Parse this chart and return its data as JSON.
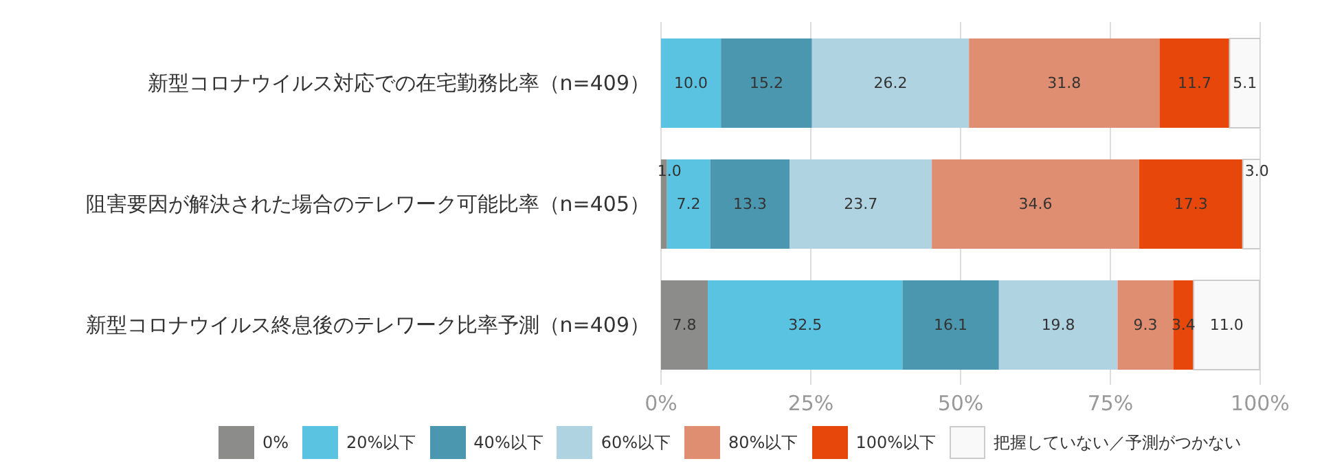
{
  "chart_data": {
    "type": "bar",
    "orientation": "horizontal",
    "stacked": true,
    "categories": [
      "新型コロナウイルス対応での在宅勤務比率（n=409）",
      "阻害要因が解決された場合のテレワーク可能比率（n=405）",
      "新型コロナウイルス終息後のテレワーク比率予測（n=409）"
    ],
    "series": [
      {
        "name": "0%",
        "color": "#8c8c8a",
        "values": [
          null,
          1.0,
          7.8
        ],
        "value_labels": [
          null,
          "1.0",
          "7.8"
        ]
      },
      {
        "name": "20%以下",
        "color": "#5bc3e2",
        "values": [
          10.0,
          7.2,
          32.5
        ],
        "value_labels": [
          "10.0",
          "7.2",
          "32.5"
        ]
      },
      {
        "name": "40%以下",
        "color": "#4b97b0",
        "values": [
          15.2,
          13.3,
          16.1
        ],
        "value_labels": [
          "15.2",
          "13.3",
          "16.1"
        ]
      },
      {
        "name": "60%以下",
        "color": "#afd3e0",
        "values": [
          26.2,
          23.7,
          19.8
        ],
        "value_labels": [
          "26.2",
          "23.7",
          "19.8"
        ]
      },
      {
        "name": "80%以下",
        "color": "#e08e72",
        "values": [
          31.8,
          34.6,
          9.3
        ],
        "value_labels": [
          "31.8",
          "34.6",
          "9.3"
        ]
      },
      {
        "name": "100%以下",
        "color": "#e8470c",
        "values": [
          11.7,
          17.3,
          3.4
        ],
        "value_labels": [
          "11.7",
          "17.3",
          "3.4"
        ]
      },
      {
        "name": "把握していない／予測がつかない",
        "color": "#f9f9f9",
        "values": [
          5.1,
          3.0,
          11.0
        ],
        "value_labels": [
          "5.1",
          "3.0",
          "11.0"
        ]
      }
    ],
    "xlim": [
      0,
      100
    ],
    "xticks": [
      {
        "value": 0,
        "label": "0%"
      },
      {
        "value": 25,
        "label": "25%"
      },
      {
        "value": 50,
        "label": "50%"
      },
      {
        "value": 75,
        "label": "75%"
      },
      {
        "value": 100,
        "label": "100%"
      }
    ],
    "grid": "x",
    "legend": "bottom"
  }
}
